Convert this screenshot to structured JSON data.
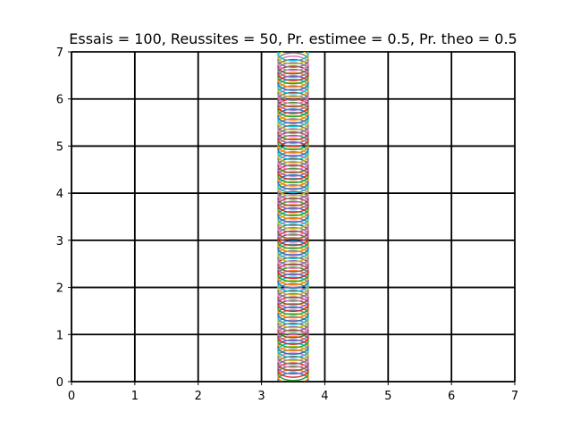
{
  "chart_data": {
    "type": "scatter",
    "title": "Essais = 100, Reussites = 50, Pr. estimee = 0.5, Pr. theo = 0.5",
    "xlabel": "",
    "ylabel": "",
    "xlim": [
      0,
      7
    ],
    "ylim": [
      0,
      7
    ],
    "x_ticks": [
      0,
      1,
      2,
      3,
      4,
      5,
      6,
      7
    ],
    "y_ticks": [
      0,
      1,
      2,
      3,
      4,
      5,
      6,
      7
    ],
    "grid": true,
    "marker": "circle (open)",
    "needle_count": 100,
    "needle_center_x": 3.5,
    "needle_y_range": [
      0,
      7
    ],
    "colors": [
      "#1f77b4",
      "#ff7f0e",
      "#2ca02c",
      "#d62728",
      "#9467bd",
      "#8c564b",
      "#e377c2",
      "#7f7f7f",
      "#bcbd22",
      "#17becf"
    ]
  }
}
